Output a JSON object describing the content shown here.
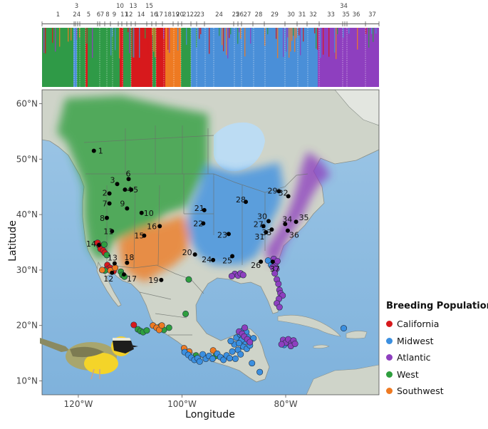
{
  "structure": {
    "sites": [
      "1",
      "2",
      "3",
      "4",
      "5",
      "6",
      "7",
      "8",
      "9",
      "10",
      "11",
      "12",
      "13",
      "14",
      "15",
      "16",
      "17",
      "18",
      "19",
      "20",
      "21",
      "22",
      "23",
      "24",
      "25",
      "26",
      "27",
      "28",
      "29",
      "30",
      "31",
      "32",
      "33",
      "34",
      "35",
      "36",
      "37"
    ]
  },
  "map": {
    "x_axis_title": "Longitude",
    "y_axis_title": "Latitude",
    "lon_ticks": [
      "120°W",
      "100°W",
      "80°W"
    ],
    "lat_ticks": [
      "60°N",
      "50°N",
      "40°N",
      "30°N",
      "20°N",
      "10°N"
    ],
    "lon_range": [
      -127,
      -62
    ],
    "lat_range": [
      7.5,
      62.5
    ]
  },
  "colors": {
    "California": "#d7191c",
    "Midwest": "#3b8fe0",
    "Atlantic": "#8e3fbf",
    "West": "#2e9e3e",
    "Southwest": "#ee7a22"
  },
  "legend": {
    "title": "Breeding Population",
    "items": [
      {
        "label": "California",
        "color": "#d7191c"
      },
      {
        "label": "Midwest",
        "color": "#3b8fe0"
      },
      {
        "label": "Atlantic",
        "color": "#8e3fbf"
      },
      {
        "label": "West",
        "color": "#2e9e3e"
      },
      {
        "label": "Southwest",
        "color": "#ee7a22"
      }
    ]
  },
  "breeding_sites": [
    {
      "id": "1",
      "lon": -117,
      "lat": 51.5
    },
    {
      "id": "2",
      "lon": -114,
      "lat": 43.8
    },
    {
      "id": "3",
      "lon": -112.5,
      "lat": 45.5
    },
    {
      "id": "4",
      "lon": -111,
      "lat": 44.5
    },
    {
      "id": "5",
      "lon": -109.8,
      "lat": 44.5
    },
    {
      "id": "6",
      "lon": -110.3,
      "lat": 46.4
    },
    {
      "id": "7",
      "lon": -114,
      "lat": 42
    },
    {
      "id": "8",
      "lon": -114.5,
      "lat": 39.4
    },
    {
      "id": "9",
      "lon": -110.6,
      "lat": 41.1
    },
    {
      "id": "10",
      "lon": -107.8,
      "lat": 40.3
    },
    {
      "id": "11",
      "lon": -113.5,
      "lat": 37
    },
    {
      "id": "12",
      "lon": -113.5,
      "lat": 29.5
    },
    {
      "id": "13",
      "lon": -113,
      "lat": 31.2
    },
    {
      "id": "14",
      "lon": -116,
      "lat": 34.5
    },
    {
      "id": "15",
      "lon": -107.3,
      "lat": 36.2
    },
    {
      "id": "16",
      "lon": -104.3,
      "lat": 37.9
    },
    {
      "id": "17",
      "lon": -111.2,
      "lat": 29.2
    },
    {
      "id": "18",
      "lon": -110.6,
      "lat": 31.3
    },
    {
      "id": "19",
      "lon": -104,
      "lat": 28.2
    },
    {
      "id": "20",
      "lon": -97.5,
      "lat": 32.8
    },
    {
      "id": "21",
      "lon": -95.7,
      "lat": 40.8
    },
    {
      "id": "22",
      "lon": -95.9,
      "lat": 38.4
    },
    {
      "id": "23",
      "lon": -91,
      "lat": 36.5
    },
    {
      "id": "24",
      "lon": -94,
      "lat": 31.8
    },
    {
      "id": "25",
      "lon": -90.3,
      "lat": 32.5
    },
    {
      "id": "26",
      "lon": -84.8,
      "lat": 31.5
    },
    {
      "id": "27",
      "lon": -84.3,
      "lat": 37.9
    },
    {
      "id": "28",
      "lon": -87.7,
      "lat": 42.3
    },
    {
      "id": "29",
      "lon": -81.3,
      "lat": 44.2
    },
    {
      "id": "30",
      "lon": -83.3,
      "lat": 38.8
    },
    {
      "id": "31",
      "lon": -83.8,
      "lat": 36.8
    },
    {
      "id": "32",
      "lon": -79.5,
      "lat": 43.3
    },
    {
      "id": "33",
      "lon": -82.7,
      "lat": 37.3
    },
    {
      "id": "34",
      "lon": -80.1,
      "lat": 38.3
    },
    {
      "id": "35",
      "lon": -78,
      "lat": 38.7
    },
    {
      "id": "36",
      "lon": -79.6,
      "lat": 37.1
    },
    {
      "id": "37",
      "lon": -82.5,
      "lat": 31.5
    }
  ],
  "winter_samples": [
    {
      "pop": "California",
      "lon": -116.3,
      "lat": 34.9
    },
    {
      "pop": "California",
      "lon": -115.9,
      "lat": 34.4
    },
    {
      "pop": "California",
      "lon": -115.7,
      "lat": 33.8
    },
    {
      "pop": "California",
      "lon": -115.2,
      "lat": 33.5
    },
    {
      "pop": "California",
      "lon": -114.9,
      "lat": 33.1
    },
    {
      "pop": "California",
      "lon": -114.4,
      "lat": 30.9
    },
    {
      "pop": "California",
      "lon": -113.9,
      "lat": 30.4
    },
    {
      "pop": "California",
      "lon": -113.2,
      "lat": 29.8
    },
    {
      "pop": "California",
      "lon": -114.6,
      "lat": 30.1
    },
    {
      "pop": "California",
      "lon": -109.3,
      "lat": 20.1
    },
    {
      "pop": "West",
      "lon": -115.0,
      "lat": 34.6
    },
    {
      "pop": "West",
      "lon": -114.5,
      "lat": 32.7
    },
    {
      "pop": "West",
      "lon": -114.9,
      "lat": 29.9
    },
    {
      "pop": "West",
      "lon": -111.8,
      "lat": 29.7
    },
    {
      "pop": "West",
      "lon": -111.5,
      "lat": 29.1
    },
    {
      "pop": "West",
      "lon": -111.1,
      "lat": 28.8
    },
    {
      "pop": "West",
      "lon": -98.7,
      "lat": 28.3
    },
    {
      "pop": "West",
      "lon": -99.3,
      "lat": 22.1
    },
    {
      "pop": "West",
      "lon": -102.5,
      "lat": 19.6
    },
    {
      "pop": "West",
      "lon": -108.5,
      "lat": 19.3
    },
    {
      "pop": "West",
      "lon": -108.0,
      "lat": 19.0
    },
    {
      "pop": "West",
      "lon": -107.5,
      "lat": 18.8
    },
    {
      "pop": "West",
      "lon": -106.8,
      "lat": 19.1
    },
    {
      "pop": "West",
      "lon": -104.2,
      "lat": 19.8
    },
    {
      "pop": "West",
      "lon": -103.5,
      "lat": 19.2
    },
    {
      "pop": "West",
      "lon": -97.3,
      "lat": 14.6
    },
    {
      "pop": "West",
      "lon": -93.5,
      "lat": 14.5
    },
    {
      "pop": "Southwest",
      "lon": -115.4,
      "lat": 30.0
    },
    {
      "pop": "Southwest",
      "lon": -113.8,
      "lat": 29.9
    },
    {
      "pop": "Southwest",
      "lon": -112.9,
      "lat": 30.4
    },
    {
      "pop": "Southwest",
      "lon": -105.6,
      "lat": 20.0
    },
    {
      "pop": "Southwest",
      "lon": -104.9,
      "lat": 19.6
    },
    {
      "pop": "Southwest",
      "lon": -104.4,
      "lat": 19.2
    },
    {
      "pop": "Southwest",
      "lon": -103.9,
      "lat": 20.0
    },
    {
      "pop": "Southwest",
      "lon": -98.6,
      "lat": 15.3
    },
    {
      "pop": "Southwest",
      "lon": -94.0,
      "lat": 15.5
    },
    {
      "pop": "Southwest",
      "lon": -99.6,
      "lat": 15.9
    },
    {
      "pop": "Midwest",
      "lon": -99.5,
      "lat": 15.2
    },
    {
      "pop": "Midwest",
      "lon": -98.8,
      "lat": 14.7
    },
    {
      "pop": "Midwest",
      "lon": -98.2,
      "lat": 14.2
    },
    {
      "pop": "Midwest",
      "lon": -97.6,
      "lat": 13.8
    },
    {
      "pop": "Midwest",
      "lon": -97.0,
      "lat": 14.1
    },
    {
      "pop": "Midwest",
      "lon": -96.6,
      "lat": 13.5
    },
    {
      "pop": "Midwest",
      "lon": -96.0,
      "lat": 14.8
    },
    {
      "pop": "Midwest",
      "lon": -95.4,
      "lat": 14.0
    },
    {
      "pop": "Midwest",
      "lon": -94.8,
      "lat": 14.5
    },
    {
      "pop": "Midwest",
      "lon": -94.1,
      "lat": 14.0
    },
    {
      "pop": "Midwest",
      "lon": -93.2,
      "lat": 14.9
    },
    {
      "pop": "Midwest",
      "lon": -92.6,
      "lat": 14.3
    },
    {
      "pop": "Midwest",
      "lon": -92.0,
      "lat": 13.8
    },
    {
      "pop": "Midwest",
      "lon": -91.4,
      "lat": 14.6
    },
    {
      "pop": "Midwest",
      "lon": -90.8,
      "lat": 14.1
    },
    {
      "pop": "Midwest",
      "lon": -90.3,
      "lat": 15.3
    },
    {
      "pop": "Midwest",
      "lon": -89.7,
      "lat": 14.0
    },
    {
      "pop": "Midwest",
      "lon": -89.2,
      "lat": 15.6
    },
    {
      "pop": "Midwest",
      "lon": -88.7,
      "lat": 14.8
    },
    {
      "pop": "Midwest",
      "lon": -88.2,
      "lat": 16.2
    },
    {
      "pop": "Midwest",
      "lon": -87.8,
      "lat": 17.1
    },
    {
      "pop": "Midwest",
      "lon": -89.5,
      "lat": 17.8
    },
    {
      "pop": "Midwest",
      "lon": -88.8,
      "lat": 18.4
    },
    {
      "pop": "Midwest",
      "lon": -88.1,
      "lat": 19.2
    },
    {
      "pop": "Midwest",
      "lon": -87.6,
      "lat": 18.8
    },
    {
      "pop": "Midwest",
      "lon": -87.3,
      "lat": 17.9
    },
    {
      "pop": "Midwest",
      "lon": -88.5,
      "lat": 17.4
    },
    {
      "pop": "Midwest",
      "lon": -89.9,
      "lat": 16.6
    },
    {
      "pop": "Midwest",
      "lon": -89.0,
      "lat": 16.8
    },
    {
      "pop": "Midwest",
      "lon": -87.5,
      "lat": 15.8
    },
    {
      "pop": "Midwest",
      "lon": -86.9,
      "lat": 16.4
    },
    {
      "pop": "Midwest",
      "lon": -90.6,
      "lat": 17.2
    },
    {
      "pop": "Midwest",
      "lon": -86.5,
      "lat": 13.2
    },
    {
      "pop": "Midwest",
      "lon": -85.0,
      "lat": 11.6
    },
    {
      "pop": "Midwest",
      "lon": -86.2,
      "lat": 17.7
    },
    {
      "pop": "Midwest",
      "lon": -80.3,
      "lat": 16.5
    },
    {
      "pop": "Midwest",
      "lon": -79.7,
      "lat": 17.1
    },
    {
      "pop": "Midwest",
      "lon": -79.2,
      "lat": 16.7
    },
    {
      "pop": "Midwest",
      "lon": -68.8,
      "lat": 19.5
    },
    {
      "pop": "Midwest",
      "lon": -83.4,
      "lat": 31.7
    },
    {
      "pop": "Midwest",
      "lon": -82.8,
      "lat": 30.9
    },
    {
      "pop": "Atlantic",
      "lon": -82.3,
      "lat": 32.0
    },
    {
      "pop": "Atlantic",
      "lon": -82.0,
      "lat": 31.2
    },
    {
      "pop": "Atlantic",
      "lon": -82.5,
      "lat": 30.5
    },
    {
      "pop": "Atlantic",
      "lon": -81.8,
      "lat": 30.2
    },
    {
      "pop": "Atlantic",
      "lon": -81.6,
      "lat": 31.6
    },
    {
      "pop": "Atlantic",
      "lon": -82.1,
      "lat": 29.4
    },
    {
      "pop": "Atlantic",
      "lon": -81.7,
      "lat": 28.3
    },
    {
      "pop": "Atlantic",
      "lon": -81.4,
      "lat": 27.5
    },
    {
      "pop": "Atlantic",
      "lon": -81.2,
      "lat": 26.4
    },
    {
      "pop": "Atlantic",
      "lon": -81.0,
      "lat": 25.8
    },
    {
      "pop": "Atlantic",
      "lon": -80.6,
      "lat": 25.4
    },
    {
      "pop": "Atlantic",
      "lon": -81.3,
      "lat": 24.8
    },
    {
      "pop": "Atlantic",
      "lon": -81.7,
      "lat": 24.0
    },
    {
      "pop": "Atlantic",
      "lon": -81.2,
      "lat": 23.3
    },
    {
      "pop": "Atlantic",
      "lon": -89.8,
      "lat": 29.3
    },
    {
      "pop": "Atlantic",
      "lon": -89.2,
      "lat": 29.0
    },
    {
      "pop": "Atlantic",
      "lon": -88.7,
      "lat": 29.4
    },
    {
      "pop": "Atlantic",
      "lon": -88.2,
      "lat": 29.1
    },
    {
      "pop": "Atlantic",
      "lon": -90.4,
      "lat": 28.9
    },
    {
      "pop": "Atlantic",
      "lon": -89.0,
      "lat": 18.9
    },
    {
      "pop": "Atlantic",
      "lon": -88.4,
      "lat": 18.5
    },
    {
      "pop": "Atlantic",
      "lon": -88.0,
      "lat": 18.0
    },
    {
      "pop": "Atlantic",
      "lon": -87.4,
      "lat": 17.5
    },
    {
      "pop": "Atlantic",
      "lon": -86.9,
      "lat": 17.0
    },
    {
      "pop": "Atlantic",
      "lon": -87.9,
      "lat": 19.6
    },
    {
      "pop": "Atlantic",
      "lon": -80.5,
      "lat": 17.4
    },
    {
      "pop": "Atlantic",
      "lon": -80.0,
      "lat": 16.9
    },
    {
      "pop": "Atlantic",
      "lon": -79.5,
      "lat": 17.5
    },
    {
      "pop": "Atlantic",
      "lon": -78.9,
      "lat": 16.8
    },
    {
      "pop": "Atlantic",
      "lon": -78.5,
      "lat": 17.3
    },
    {
      "pop": "Atlantic",
      "lon": -79.0,
      "lat": 16.3
    },
    {
      "pop": "Atlantic",
      "lon": -80.8,
      "lat": 16.6
    },
    {
      "pop": "Atlantic",
      "lon": -78.2,
      "lat": 16.7
    }
  ]
}
